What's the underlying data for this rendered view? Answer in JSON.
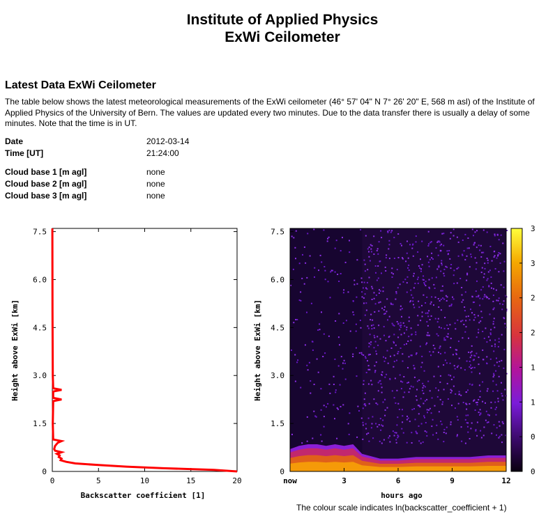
{
  "header": {
    "title_line1": "Institute of Applied Physics",
    "title_line2": "ExWi Ceilometer"
  },
  "section": {
    "heading": "Latest Data ExWi Ceilometer",
    "description": "The table below shows the latest meteorological measurements of the ExWi ceilometer (46° 57' 04\" N 7° 26' 20\" E, 568 m asl) of the Institute of Applied Physics of the University of Bern. The values are updated every two minutes. Due to the data transfer there is usually a delay of some minutes. Note that the time is in UT."
  },
  "measurements": {
    "date_label": "Date",
    "date_value": "2012-03-14",
    "time_label": "Time [UT]",
    "time_value": "21:24:00",
    "cloud1_label_pre": "Cloud base ",
    "cloud1_label_num": "1",
    "cloud1_label_post": " [m agl]",
    "cloud1_value": "none",
    "cloud2_label": "Cloud base 2 [m agl]",
    "cloud2_value": "none",
    "cloud3_label": "Cloud base 3 [m agl]",
    "cloud3_value": "none"
  },
  "colour_note": "The colour scale indicates ln(backscatter_coefficient + 1)",
  "colors": {
    "profile_line": "#ff0000",
    "heat_low": "#1a0533",
    "heat_mid": "#8a1fd6",
    "heat_high": "#f07a0a",
    "heat_top": "#ffff3c"
  },
  "chart_data": [
    {
      "type": "line",
      "xlabel": "Backscatter coefficient [1]",
      "ylabel": "Height above ExWi [km]",
      "xlim": [
        0,
        20
      ],
      "ylim": [
        0,
        7.6
      ],
      "x_ticks": [
        "0",
        "5",
        "10",
        "15",
        "20"
      ],
      "y_ticks": [
        "0",
        "1.5",
        "3.0",
        "4.5",
        "6.0",
        "7.5"
      ],
      "series": [
        {
          "height_km": [
            0,
            0.05,
            0.1,
            0.15,
            0.2,
            0.25,
            0.3,
            0.35,
            0.4,
            0.45,
            0.5,
            0.55,
            0.6,
            0.65,
            0.7,
            0.8,
            0.9,
            0.95,
            1.0,
            1.5,
            2.2,
            2.25,
            2.3,
            2.5,
            2.55,
            2.6,
            3.0,
            5.0,
            7.6
          ],
          "backscatter": [
            20,
            17.5,
            12,
            8,
            5,
            2.5,
            1.5,
            0.9,
            1.0,
            0.7,
            0.8,
            0.5,
            1.0,
            0.3,
            0.2,
            0.3,
            0.6,
            1.0,
            0.1,
            0.05,
            0.1,
            1.0,
            0.1,
            0.1,
            1.0,
            0.1,
            0.05,
            0.02,
            0.01
          ]
        }
      ]
    },
    {
      "type": "heatmap",
      "xlabel": "hours ago",
      "ylabel": "Height above ExWi [km]",
      "x_ticks": [
        "now",
        "3",
        "6",
        "9",
        "12"
      ],
      "y_ticks": [
        "0",
        "1.5",
        "3.0",
        "4.5",
        "6.0",
        "7.5"
      ],
      "xlim": [
        0,
        12
      ],
      "ylim": [
        0,
        7.6
      ],
      "colorbar": {
        "min": 0,
        "max": 3.5,
        "ticks": [
          "0",
          "0.5",
          "1",
          "1.5",
          "2",
          "2.5",
          "3",
          "3.5"
        ]
      },
      "boundary_layer": {
        "hours": [
          0,
          0.5,
          1,
          1.5,
          2,
          2.5,
          3,
          3.5,
          4,
          5,
          6,
          7,
          8,
          9,
          10,
          11,
          12
        ],
        "top_km": [
          0.7,
          0.8,
          0.85,
          0.85,
          0.8,
          0.85,
          0.8,
          0.85,
          0.55,
          0.4,
          0.4,
          0.45,
          0.45,
          0.45,
          0.45,
          0.5,
          0.5
        ]
      }
    }
  ]
}
